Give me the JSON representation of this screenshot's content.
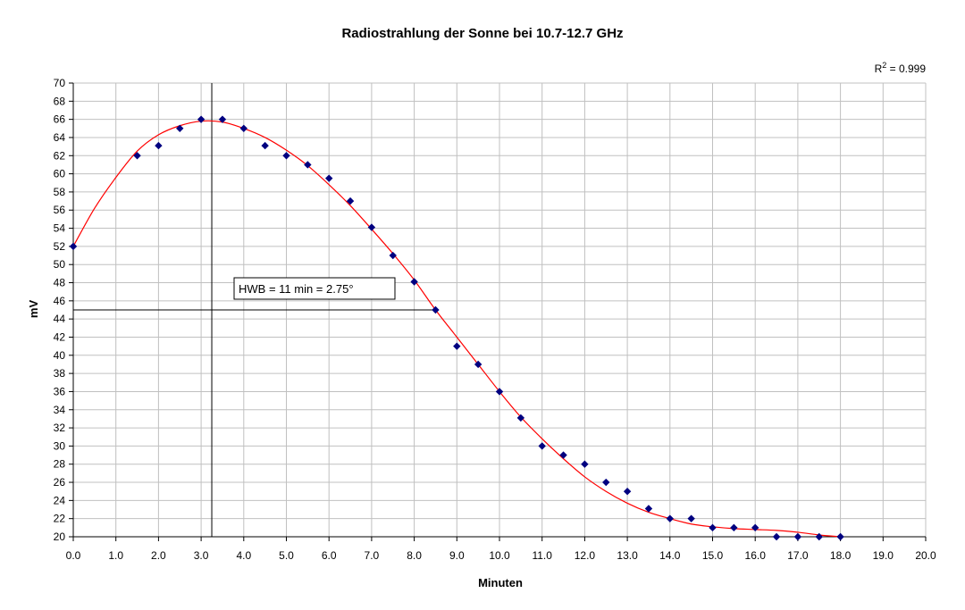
{
  "chart_data": {
    "type": "scatter",
    "title": "Radiostrahlung der Sonne bei 10.7-12.7 GHz",
    "xlabel": "Minuten",
    "ylabel": "mV",
    "xlim": [
      0,
      20
    ],
    "ylim": [
      20,
      70
    ],
    "x_ticks": [
      "0.0",
      "1.0",
      "2.0",
      "3.0",
      "4.0",
      "5.0",
      "6.0",
      "7.0",
      "8.0",
      "9.0",
      "10.0",
      "11.0",
      "12.0",
      "13.0",
      "14.0",
      "15.0",
      "16.0",
      "17.0",
      "18.0",
      "19.0",
      "20.0"
    ],
    "y_ticks": [
      "20",
      "22",
      "24",
      "26",
      "28",
      "30",
      "32",
      "34",
      "36",
      "38",
      "40",
      "42",
      "44",
      "46",
      "48",
      "50",
      "52",
      "54",
      "56",
      "58",
      "60",
      "62",
      "64",
      "66",
      "68",
      "70"
    ],
    "grid": true,
    "points": [
      {
        "x": 0.0,
        "y": 52
      },
      {
        "x": 1.5,
        "y": 62
      },
      {
        "x": 2.0,
        "y": 63.1
      },
      {
        "x": 2.5,
        "y": 65
      },
      {
        "x": 3.0,
        "y": 66
      },
      {
        "x": 3.5,
        "y": 66
      },
      {
        "x": 4.0,
        "y": 65
      },
      {
        "x": 4.5,
        "y": 63.1
      },
      {
        "x": 5.0,
        "y": 62
      },
      {
        "x": 5.5,
        "y": 61
      },
      {
        "x": 6.0,
        "y": 59.5
      },
      {
        "x": 6.5,
        "y": 57
      },
      {
        "x": 7.0,
        "y": 54.1
      },
      {
        "x": 7.5,
        "y": 51
      },
      {
        "x": 8.0,
        "y": 48.1
      },
      {
        "x": 8.5,
        "y": 45
      },
      {
        "x": 9.0,
        "y": 41
      },
      {
        "x": 9.5,
        "y": 39
      },
      {
        "x": 10.0,
        "y": 36
      },
      {
        "x": 10.5,
        "y": 33.1
      },
      {
        "x": 11.0,
        "y": 30
      },
      {
        "x": 11.5,
        "y": 29
      },
      {
        "x": 12.0,
        "y": 28
      },
      {
        "x": 12.5,
        "y": 26
      },
      {
        "x": 13.0,
        "y": 25
      },
      {
        "x": 13.5,
        "y": 23.1
      },
      {
        "x": 14.0,
        "y": 22
      },
      {
        "x": 14.5,
        "y": 22
      },
      {
        "x": 15.0,
        "y": 21
      },
      {
        "x": 15.5,
        "y": 21
      },
      {
        "x": 16.0,
        "y": 21
      },
      {
        "x": 16.5,
        "y": 20
      },
      {
        "x": 17.0,
        "y": 20
      },
      {
        "x": 17.5,
        "y": 20
      },
      {
        "x": 18.0,
        "y": 20
      }
    ],
    "trendline": {
      "color": "#ff0000",
      "x": [
        0,
        0.5,
        1,
        1.5,
        2,
        2.5,
        3,
        3.5,
        4,
        4.5,
        5,
        5.5,
        6,
        6.5,
        7,
        7.5,
        8,
        8.5,
        9,
        9.5,
        10,
        10.5,
        11,
        11.5,
        12,
        12.5,
        13,
        13.5,
        14,
        14.5,
        15,
        15.5,
        16,
        16.5,
        17,
        17.5,
        18
      ],
      "y": [
        52,
        56.2,
        59.6,
        62.5,
        64.3,
        65.3,
        65.8,
        65.7,
        65,
        64,
        62.6,
        60.9,
        58.8,
        56.5,
        53.9,
        51.2,
        48.3,
        45,
        42,
        39,
        36,
        33.2,
        30.8,
        28.6,
        26.6,
        25,
        23.7,
        22.7,
        22,
        21.4,
        21.1,
        20.9,
        20.8,
        20.7,
        20.5,
        20.2,
        20
      ]
    },
    "r_squared_label": "R",
    "r_squared_sup": "2",
    "r_squared_value": " = 0.999",
    "annotation": "HWB = 11 min = 2.75°",
    "guide_vertical_x": 3.25,
    "guide_horizontal_y": 45,
    "guide_horizontal_x_end": 8.5,
    "point_color": "#000080",
    "grid_color": "#c0c0c0"
  }
}
